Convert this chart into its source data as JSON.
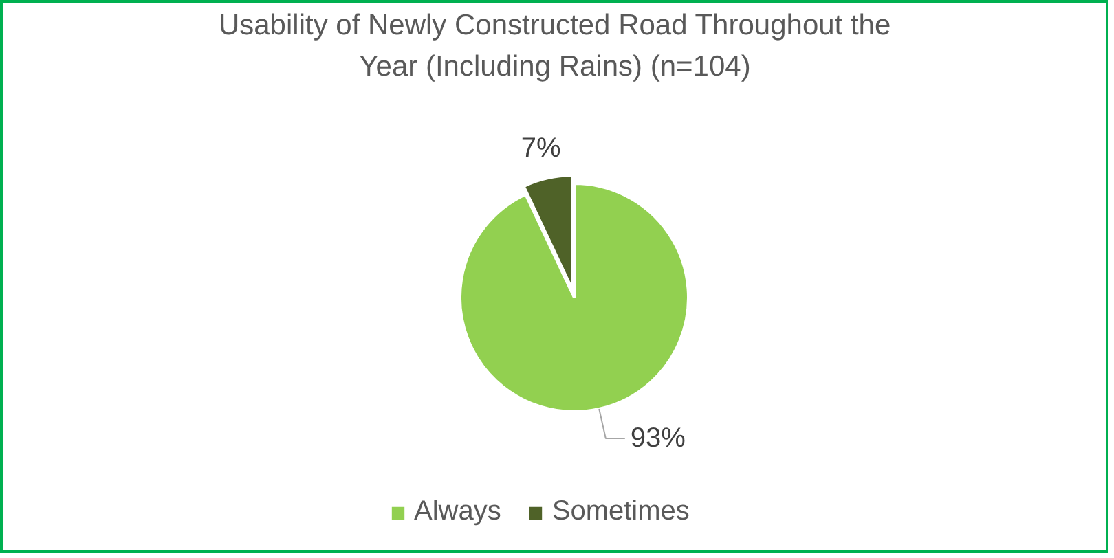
{
  "chart_data": {
    "type": "pie",
    "title": "Usability of Newly Constructed Road Throughout the\nYear (Including Rains) (n=104)",
    "categories": [
      "Always",
      "Sometimes"
    ],
    "values": [
      93,
      7
    ],
    "colors": [
      "#92d050",
      "#4f6228"
    ],
    "value_labels": [
      "93%",
      "7%"
    ],
    "legend": "bottom"
  }
}
